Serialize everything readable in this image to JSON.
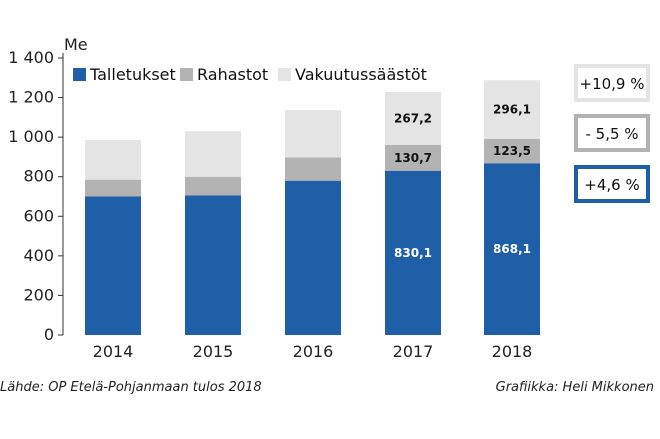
{
  "chart_data": {
    "type": "bar",
    "stacked": true,
    "unit": "Me",
    "categories": [
      "2014",
      "2015",
      "2016",
      "2017",
      "2018"
    ],
    "series": [
      {
        "name": "Talletukset",
        "color": "#1f5fa8",
        "values": [
          700,
          705,
          780,
          830.1,
          868.1
        ]
      },
      {
        "name": "Rahastot",
        "color": "#b3b3b3",
        "values": [
          85,
          95,
          118,
          130.7,
          123.5
        ]
      },
      {
        "name": "Vakuutussäästöt",
        "color": "#e4e4e4",
        "values": [
          200,
          230,
          238,
          267.2,
          296.1
        ]
      }
    ],
    "data_labels": [
      {
        "category": "2017",
        "series": "Talletukset",
        "text": "830,1"
      },
      {
        "category": "2017",
        "series": "Rahastot",
        "text": "130,7"
      },
      {
        "category": "2017",
        "series": "Vakuutussäästöt",
        "text": "267,2"
      },
      {
        "category": "2018",
        "series": "Talletukset",
        "text": "868,1"
      },
      {
        "category": "2018",
        "series": "Rahastot",
        "text": "123,5"
      },
      {
        "category": "2018",
        "series": "Vakuutussäästöt",
        "text": "296,1"
      }
    ],
    "ylim": [
      0,
      1400
    ],
    "yticks": [
      0,
      200,
      400,
      600,
      800,
      1000,
      1200,
      1400
    ],
    "ytick_labels": [
      "0",
      "200",
      "400",
      "600",
      "800",
      "1 000",
      "1 200",
      "1 400"
    ],
    "grid": false,
    "legend_placement": "top-left"
  },
  "change_boxes": [
    {
      "series": "Vakuutussäästöt",
      "text": "+10,9 %",
      "border_color": "#e4e4e4"
    },
    {
      "series": "Rahastot",
      "text": "- 5,5 %",
      "border_color": "#b3b3b3"
    },
    {
      "series": "Talletukset",
      "text": "+4,6 %",
      "border_color": "#1f5fa8"
    }
  ],
  "footer": {
    "source": "Lähde: OP Etelä-Pohjanmaan tulos 2018",
    "credit": "Grafiikka: Heli Mikkonen"
  }
}
